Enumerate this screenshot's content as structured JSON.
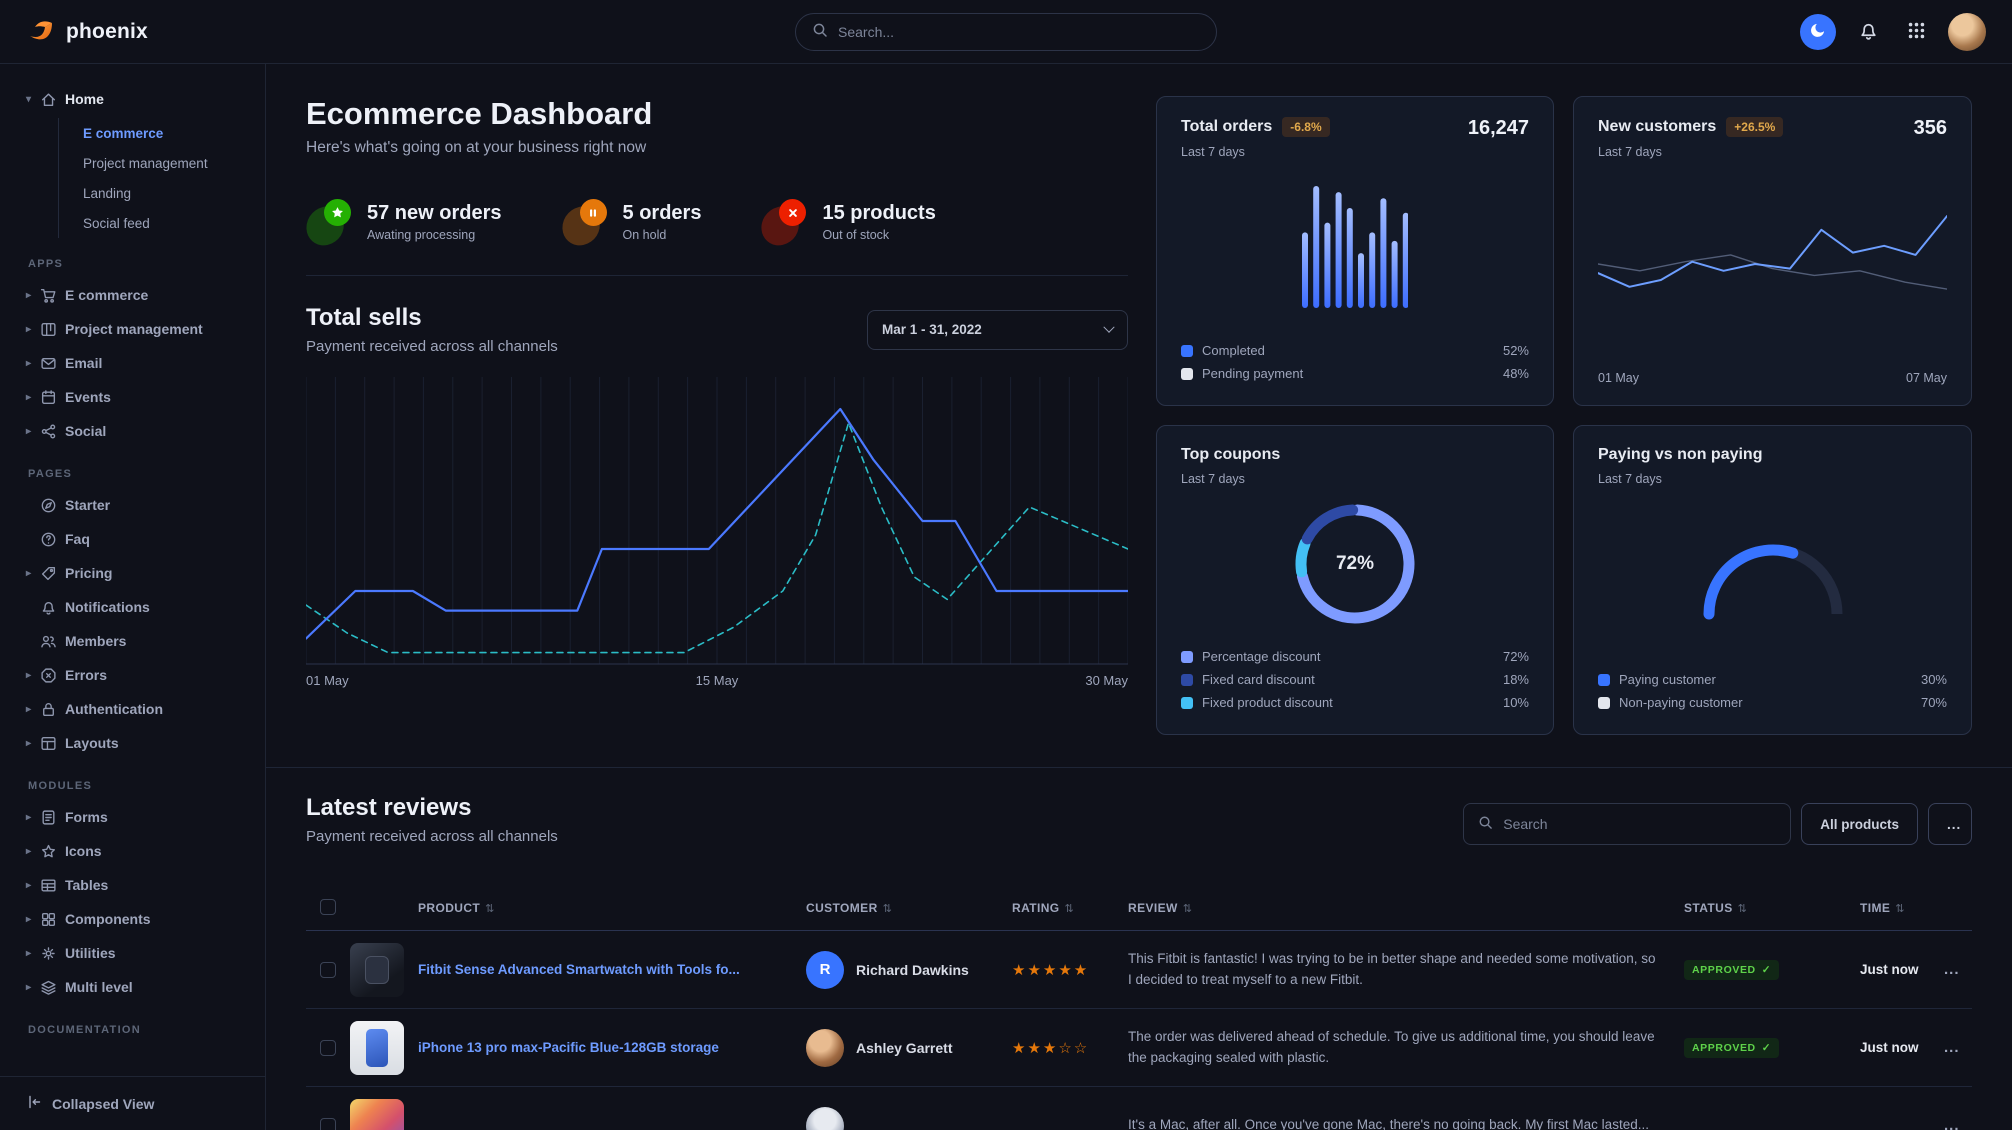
{
  "colors": {
    "accent": "#3874ff",
    "link": "#6e9bff",
    "success": "#25b003",
    "warning": "#e5780b",
    "danger": "#ed2000",
    "star": "#e5780b",
    "teal": "#2bbcc6"
  },
  "navbar": {
    "brand": "phoenix",
    "search_placeholder": "Search...",
    "icons": [
      "phoenix-logo-icon",
      "search-icon",
      "moon-icon",
      "bell-icon",
      "apps-grid-icon",
      "user-avatar"
    ]
  },
  "sidebar": {
    "sections": [
      {
        "label": "",
        "items": [
          {
            "label": "Home",
            "icon": "home-icon",
            "caret": "down",
            "expanded": true,
            "children": [
              {
                "label": "E commerce",
                "active": true
              },
              {
                "label": "Project management",
                "active": false
              },
              {
                "label": "Landing",
                "active": false
              },
              {
                "label": "Social feed",
                "active": false
              }
            ]
          }
        ]
      },
      {
        "label": "APPS",
        "items": [
          {
            "label": "E commerce",
            "icon": "cart-icon",
            "caret": "right"
          },
          {
            "label": "Project management",
            "icon": "kanban-icon",
            "caret": "right"
          },
          {
            "label": "Email",
            "icon": "mail-icon",
            "caret": "right"
          },
          {
            "label": "Events",
            "icon": "calendar-icon",
            "caret": "right"
          },
          {
            "label": "Social",
            "icon": "share-icon",
            "caret": "right"
          }
        ]
      },
      {
        "label": "PAGES",
        "items": [
          {
            "label": "Starter",
            "icon": "compass-icon",
            "caret": ""
          },
          {
            "label": "Faq",
            "icon": "question-icon",
            "caret": ""
          },
          {
            "label": "Pricing",
            "icon": "tag-icon",
            "caret": "right"
          },
          {
            "label": "Notifications",
            "icon": "bell-icon",
            "caret": ""
          },
          {
            "label": "Members",
            "icon": "users-icon",
            "caret": ""
          },
          {
            "label": "Errors",
            "icon": "error-icon",
            "caret": "right"
          },
          {
            "label": "Authentication",
            "icon": "lock-icon",
            "caret": "right"
          },
          {
            "label": "Layouts",
            "icon": "layout-icon",
            "caret": "right"
          }
        ]
      },
      {
        "label": "MODULES",
        "items": [
          {
            "label": "Forms",
            "icon": "forms-icon",
            "caret": "right"
          },
          {
            "label": "Icons",
            "icon": "star-outline-icon",
            "caret": "right"
          },
          {
            "label": "Tables",
            "icon": "table-icon",
            "caret": "right"
          },
          {
            "label": "Components",
            "icon": "components-icon",
            "caret": "right"
          },
          {
            "label": "Utilities",
            "icon": "gear-icon",
            "caret": "right"
          },
          {
            "label": "Multi level",
            "icon": "layers-icon",
            "caret": "right"
          }
        ]
      },
      {
        "label": "DOCUMENTATION",
        "items": []
      }
    ],
    "footer": {
      "label": "Collapsed View",
      "icon": "collapse-icon"
    }
  },
  "page": {
    "title": "Ecommerce Dashboard",
    "subtitle": "Here's what's going on at your business right now"
  },
  "stats": [
    {
      "icon": "star-icon",
      "color": "#25b003",
      "value": "57 new orders",
      "caption": "Awating processing"
    },
    {
      "icon": "pause-icon",
      "color": "#e5780b",
      "value": "5 orders",
      "caption": "On hold"
    },
    {
      "icon": "close-icon",
      "color": "#ed2000",
      "value": "15 products",
      "caption": "Out of stock"
    }
  ],
  "total_sells": {
    "title": "Total sells",
    "subtitle": "Payment received across all channels",
    "date_range": "Mar 1 - 31, 2022",
    "chart_data": {
      "type": "line",
      "x_labels": [
        "01 May",
        "15 May",
        "30 May"
      ],
      "grid": "vertical",
      "ylim": [
        0,
        100
      ],
      "series": [
        {
          "name": "current",
          "style": "solid",
          "color": "#4b79ff",
          "points": [
            [
              0,
              8
            ],
            [
              6,
              25
            ],
            [
              13,
              25
            ],
            [
              17,
              18
            ],
            [
              33,
              18
            ],
            [
              36,
              40
            ],
            [
              49,
              40
            ],
            [
              65,
              90
            ],
            [
              69,
              72
            ],
            [
              75,
              50
            ],
            [
              79,
              50
            ],
            [
              84,
              25
            ],
            [
              100,
              25
            ]
          ]
        },
        {
          "name": "previous",
          "style": "dashed",
          "color": "#2bbcc6",
          "points": [
            [
              0,
              20
            ],
            [
              5,
              10
            ],
            [
              10,
              3
            ],
            [
              46,
              3
            ],
            [
              52,
              12
            ],
            [
              58,
              25
            ],
            [
              62,
              45
            ],
            [
              66,
              85
            ],
            [
              70,
              55
            ],
            [
              74,
              30
            ],
            [
              78,
              22
            ],
            [
              88,
              55
            ],
            [
              100,
              40
            ]
          ]
        }
      ]
    }
  },
  "cards": {
    "total_orders": {
      "title": "Total orders",
      "badge": "-6.8%",
      "period": "Last 7 days",
      "value": "16,247",
      "chart_data": {
        "type": "bar",
        "values": [
          62,
          100,
          70,
          95,
          82,
          45,
          62,
          90,
          55,
          78
        ],
        "color": "#6d9eff"
      },
      "legend": [
        {
          "label": "Completed",
          "value": "52%",
          "color": "#3874ff"
        },
        {
          "label": "Pending payment",
          "value": "48%",
          "color": "#e3e6ed"
        }
      ]
    },
    "new_customers": {
      "title": "New customers",
      "badge": "+26.5%",
      "period": "Last 7 days",
      "value": "356",
      "x_labels": [
        "01 May",
        "07 May"
      ],
      "chart_data": {
        "type": "line",
        "series": [
          {
            "name": "new customers",
            "style": "solid",
            "color": "#6d9eff",
            "points": [
              [
                0,
                42
              ],
              [
                9,
                30
              ],
              [
                18,
                36
              ],
              [
                27,
                52
              ],
              [
                36,
                44
              ],
              [
                45,
                50
              ],
              [
                55,
                46
              ],
              [
                64,
                80
              ],
              [
                73,
                60
              ],
              [
                82,
                66
              ],
              [
                91,
                58
              ],
              [
                100,
                92
              ]
            ]
          },
          {
            "name": "previous",
            "style": "solid",
            "color": "#525d77",
            "points": [
              [
                0,
                50
              ],
              [
                12,
                44
              ],
              [
                25,
                52
              ],
              [
                38,
                58
              ],
              [
                50,
                46
              ],
              [
                62,
                40
              ],
              [
                75,
                44
              ],
              [
                88,
                34
              ],
              [
                100,
                28
              ]
            ]
          }
        ]
      }
    },
    "top_coupons": {
      "title": "Top coupons",
      "period": "Last 7 days",
      "center_label": "72%",
      "chart_data": {
        "type": "donut",
        "slices": [
          {
            "label": "Percentage discount",
            "value": 72,
            "color": "#7e9bff"
          },
          {
            "label": "Fixed product discount",
            "value": 10,
            "color": "#43c0f5"
          },
          {
            "label": "Fixed card discount",
            "value": 18,
            "color": "#2e4aa5"
          }
        ]
      },
      "legend": [
        {
          "label": "Percentage discount",
          "value": "72%",
          "color": "#7e9bff"
        },
        {
          "label": "Fixed card discount",
          "value": "18%",
          "color": "#2e4aa5"
        },
        {
          "label": "Fixed product discount",
          "value": "10%",
          "color": "#43c0f5"
        }
      ]
    },
    "paying_vs_non_paying": {
      "title": "Paying vs non paying",
      "period": "Last 7 days",
      "chart_data": {
        "type": "gauge",
        "value": 30,
        "max": 100,
        "color": "#3874ff",
        "track": "#232b40"
      },
      "legend": [
        {
          "label": "Paying customer",
          "value": "30%",
          "color": "#3874ff"
        },
        {
          "label": "Non-paying customer",
          "value": "70%",
          "color": "#e3e6ed"
        }
      ]
    }
  },
  "reviews": {
    "title": "Latest reviews",
    "subtitle": "Payment received across all channels",
    "search_placeholder": "Search",
    "all_products_label": "All products",
    "more_label": "...",
    "columns": [
      {
        "key": "product",
        "label": "PRODUCT",
        "sortable": true
      },
      {
        "key": "customer",
        "label": "CUSTOMER",
        "sortable": true
      },
      {
        "key": "rating",
        "label": "RATING",
        "sortable": true
      },
      {
        "key": "review",
        "label": "REVIEW",
        "sortable": true
      },
      {
        "key": "status",
        "label": "STATUS",
        "sortable": true
      },
      {
        "key": "time",
        "label": "TIME",
        "sortable": true
      }
    ],
    "rows": [
      {
        "product": "Fitbit Sense Advanced Smartwatch with Tools fo...",
        "thumb": "watch",
        "customer": "Richard Dawkins",
        "avatar": "initial",
        "avatar_initial": "R",
        "rating": 5,
        "review": "This Fitbit is fantastic! I was trying to be in better shape and needed some motivation, so I decided to treat myself to a new Fitbit.",
        "status": "APPROVED",
        "time": "Just now"
      },
      {
        "product": "iPhone 13 pro max-Pacific Blue-128GB storage",
        "thumb": "phone",
        "customer": "Ashley Garrett",
        "avatar": "photo-woman",
        "avatar_initial": "",
        "rating": 3,
        "review": "The order was delivered ahead of schedule. To give us additional time, you should leave the packaging sealed with plastic.",
        "status": "APPROVED",
        "time": "Just now"
      },
      {
        "product": "",
        "thumb": "laptop",
        "customer": "",
        "avatar": "photo-person",
        "avatar_initial": "",
        "rating": 0,
        "review": "It's a Mac, after all. Once you've gone Mac, there's no going back. My first Mac lasted...",
        "status": "",
        "time": ""
      }
    ]
  }
}
